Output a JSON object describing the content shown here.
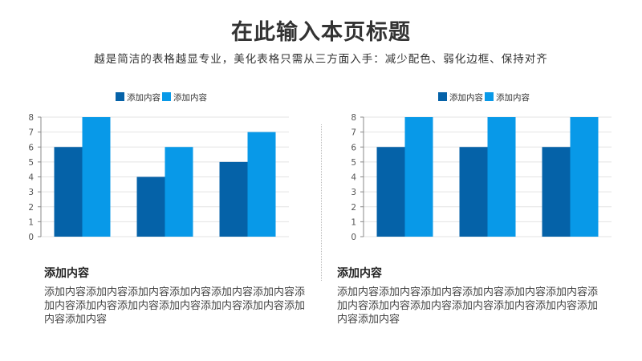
{
  "header": {
    "title": "在此输入本页标题",
    "subtitle": "越是简洁的表格越显专业，美化表格只需从三方面入手：减少配色、弱化边框、保持对齐"
  },
  "colors": {
    "series1": "#0562A8",
    "series2": "#0899E8",
    "grid": "#e3e3e3",
    "axis": "#888888"
  },
  "chart_data": [
    {
      "type": "bar",
      "categories": [
        "",
        "",
        ""
      ],
      "series": [
        {
          "name": "添加内容",
          "values": [
            6,
            4,
            5
          ]
        },
        {
          "name": "添加内容",
          "values": [
            8,
            6,
            7
          ]
        }
      ],
      "ylim": [
        0,
        8
      ],
      "yticks": [
        0,
        1,
        2,
        3,
        4,
        5,
        6,
        7,
        8
      ],
      "grid": true,
      "legend": "top"
    },
    {
      "type": "bar",
      "categories": [
        "",
        "",
        ""
      ],
      "series": [
        {
          "name": "添加内容",
          "values": [
            6,
            6,
            6
          ]
        },
        {
          "name": "添加内容",
          "values": [
            8,
            8,
            8
          ]
        }
      ],
      "ylim": [
        0,
        8
      ],
      "yticks": [
        0,
        1,
        2,
        3,
        4,
        5,
        6,
        7,
        8
      ],
      "grid": true,
      "legend": "top"
    }
  ],
  "blocks": [
    {
      "heading": "添加内容",
      "body": "添加内容添加内容添加内容添加内容添加内容添加内容添加内容添加内容添加内容添加内容添加内容添加内容添加内容添加内容"
    },
    {
      "heading": "添加内容",
      "body": "添加内容添加内容添加内容添加内容添加内容添加内容添加内容添加内容添加内容添加内容添加内容添加内容添加内容添加内容"
    }
  ]
}
